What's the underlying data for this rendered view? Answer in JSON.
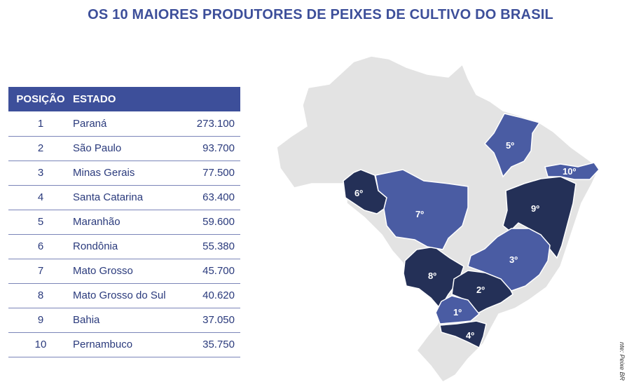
{
  "title": "OS 10 MAIORES PRODUTORES DE PEIXES DE CULTIVO DO BRASIL",
  "table": {
    "headers": [
      "POSIÇÃO",
      "ESTADO"
    ],
    "rows": [
      {
        "pos": "1",
        "state": "Paraná",
        "value": "273.100"
      },
      {
        "pos": "2",
        "state": "São Paulo",
        "value": "93.700"
      },
      {
        "pos": "3",
        "state": "Minas Gerais",
        "value": "77.500"
      },
      {
        "pos": "4",
        "state": "Santa Catarina",
        "value": "63.400"
      },
      {
        "pos": "5",
        "state": "Maranhão",
        "value": "59.600"
      },
      {
        "pos": "6",
        "state": "Rondônia",
        "value": "55.380"
      },
      {
        "pos": "7",
        "state": "Mato Grosso",
        "value": "45.700"
      },
      {
        "pos": "8",
        "state": "Mato Grosso do Sul",
        "value": "40.620"
      },
      {
        "pos": "9",
        "state": "Bahia",
        "value": "37.050"
      },
      {
        "pos": "10",
        "state": "Pernambuco",
        "value": "35.750"
      }
    ]
  },
  "map_labels": {
    "pr": "1º",
    "sp": "2º",
    "mg": "3º",
    "sc": "4º",
    "ma": "5º",
    "ro": "6º",
    "mt": "7º",
    "ms": "8º",
    "ba": "9º",
    "pe": "10º"
  },
  "source": "nte: Peixe BR",
  "colors": {
    "header": "#3d4f9a",
    "light_state": "#4a5ca3",
    "dark_state": "#243057",
    "base_map": "#e3e3e3"
  },
  "chart_data": {
    "type": "table",
    "title": "OS 10 MAIORES PRODUTORES DE PEIXES DE CULTIVO DO BRASIL",
    "categories": [
      "Paraná",
      "São Paulo",
      "Minas Gerais",
      "Santa Catarina",
      "Maranhão",
      "Rondônia",
      "Mato Grosso",
      "Mato Grosso do Sul",
      "Bahia",
      "Pernambuco"
    ],
    "values": [
      273100,
      93700,
      77500,
      63400,
      59600,
      55380,
      45700,
      40620,
      37050,
      35750
    ]
  }
}
